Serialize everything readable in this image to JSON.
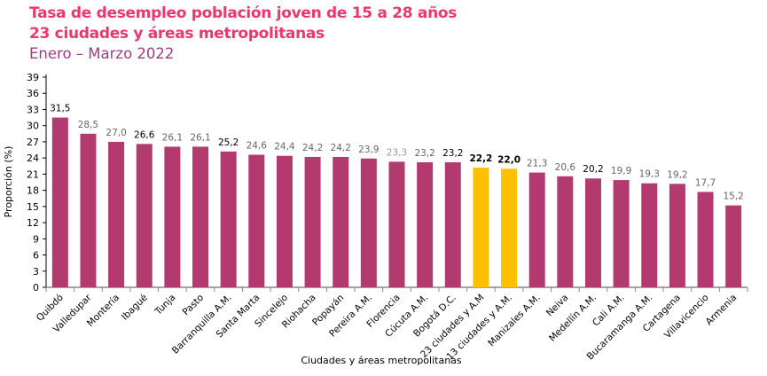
{
  "chart_data": {
    "type": "bar",
    "title": "Tasa de desempleo población joven de 15 a 28 años",
    "subtitle": "23 ciudades y áreas metropolitanas",
    "period": "Enero – Marzo 2022",
    "xlabel": "Ciudades y áreas metropolitanas",
    "ylabel": "Proporción (%)",
    "ylim": [
      0,
      39
    ],
    "yticks": [
      0,
      3,
      6,
      9,
      12,
      15,
      18,
      21,
      24,
      27,
      30,
      33,
      36,
      39
    ],
    "grid": false,
    "categories": [
      "Quibdó",
      "Valledupar",
      "Montería",
      "Ibagué",
      "Tunja",
      "Pasto",
      "Barranquilla A.M.",
      "Santa Marta",
      "Sincelejo",
      "Riohacha",
      "Popayán",
      "Pereira A.M.",
      "Florencia",
      "Cúcuta A.M.",
      "Bogotá D.C.",
      "23 ciudades y A.M",
      "13 ciudades y A.M.",
      "Manizales A.M.",
      "Neiva",
      "Medellín A.M.",
      "Cali A.M.",
      "Bucaramanga A.M.",
      "Cartagena",
      "Villavicencio",
      "Armenia"
    ],
    "values": [
      31.5,
      28.5,
      27.0,
      26.6,
      26.1,
      26.1,
      25.2,
      24.6,
      24.4,
      24.2,
      24.2,
      23.9,
      23.3,
      23.2,
      23.2,
      22.2,
      22.0,
      21.3,
      20.6,
      20.2,
      19.9,
      19.3,
      19.2,
      17.7,
      15.2
    ],
    "value_labels": [
      "31,5",
      "28,5",
      "27,0",
      "26,6",
      "26,1",
      "26,1",
      "25,2",
      "24,6",
      "24,4",
      "24,2",
      "24,2",
      "23,9",
      "23,3",
      "23,2",
      "23,2",
      "22,2",
      "22,0",
      "21,3",
      "20,6",
      "20,2",
      "19,9",
      "19,3",
      "19,2",
      "17,7",
      "15,2"
    ],
    "label_style": [
      "dark",
      "grey",
      "grey",
      "dark",
      "grey",
      "grey",
      "dark",
      "grey",
      "grey",
      "grey",
      "grey",
      "grey",
      "light",
      "grey",
      "dark",
      "bold",
      "bold",
      "grey",
      "grey",
      "dark",
      "grey",
      "grey",
      "grey",
      "grey",
      "grey"
    ],
    "highlighted": [
      "23 ciudades y A.M",
      "13 ciudades y A.M."
    ],
    "colors": {
      "bar": "#b33a6e",
      "highlight": "#ffc000",
      "title": "#e9386e",
      "period": "#9b3f82"
    }
  }
}
